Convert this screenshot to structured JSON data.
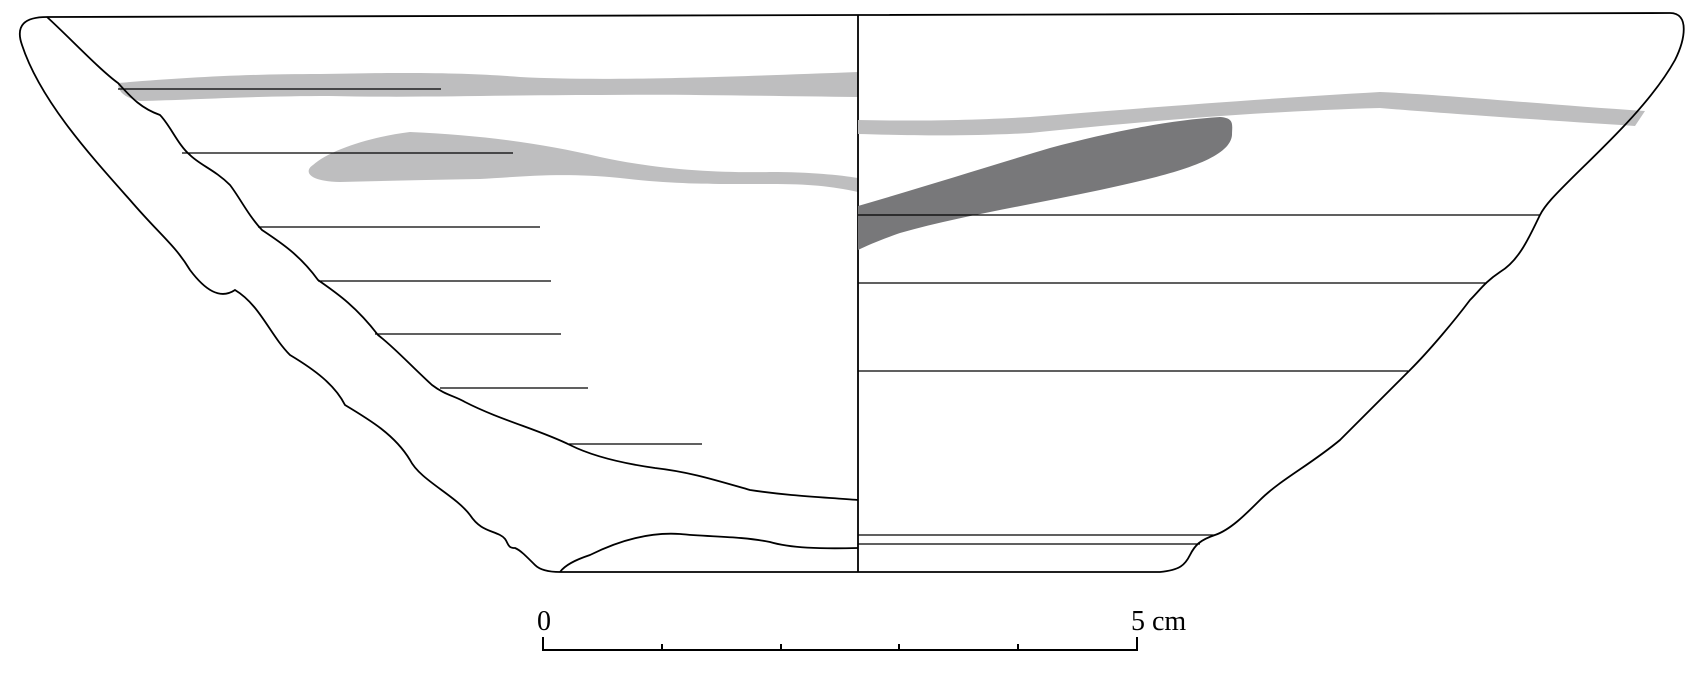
{
  "scale_bar": {
    "start_label": "0",
    "end_label": "5 cm",
    "major_divisions": 5
  },
  "colors": {
    "outline": "#000000",
    "light_band": "#bebebf",
    "dark_band": "#78787a",
    "background": "#ffffff"
  }
}
